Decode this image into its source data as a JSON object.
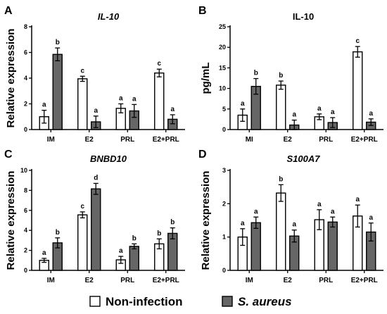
{
  "legend": [
    {
      "label": "Non-infection",
      "color": "#ffffff"
    },
    {
      "label": "S. aureus",
      "color": "#666666"
    }
  ],
  "chart_data": [
    {
      "panel": "A",
      "type": "bar",
      "title": "IL-10",
      "title_italic": true,
      "xlabel": "",
      "ylabel": "Relative expression",
      "ylim": [
        0,
        8
      ],
      "yticks": [
        0,
        2,
        4,
        6,
        8
      ],
      "categories": [
        "IM",
        "E2",
        "PRL",
        "E2+PRL"
      ],
      "series": [
        {
          "name": "Non-infection",
          "values": [
            1.0,
            3.95,
            1.65,
            4.4
          ],
          "errors": [
            0.5,
            0.2,
            0.35,
            0.3
          ],
          "letters": [
            "a",
            "c",
            "a",
            "c"
          ]
        },
        {
          "name": "S. aureus",
          "values": [
            5.85,
            0.6,
            1.45,
            0.8
          ],
          "errors": [
            0.5,
            0.45,
            0.5,
            0.35
          ],
          "letters": [
            "b",
            "a",
            "a",
            "a"
          ]
        }
      ]
    },
    {
      "panel": "B",
      "type": "bar",
      "title": "IL-10",
      "title_italic": false,
      "xlabel": "",
      "ylabel": "pg/mL",
      "ylim": [
        0,
        25
      ],
      "yticks": [
        0,
        5,
        10,
        15,
        20,
        25
      ],
      "categories": [
        "MI",
        "E2",
        "PRL",
        "E2+PRL"
      ],
      "series": [
        {
          "name": "Non-infection",
          "values": [
            3.5,
            10.8,
            3.1,
            18.9
          ],
          "errors": [
            1.5,
            1.0,
            0.7,
            1.3
          ],
          "letters": [
            "a",
            "b",
            "a",
            "c"
          ]
        },
        {
          "name": "S. aureus",
          "values": [
            10.5,
            1.1,
            1.7,
            1.8
          ],
          "errors": [
            1.9,
            1.2,
            1.2,
            0.8
          ],
          "letters": [
            "b",
            "a",
            "a",
            "a"
          ]
        }
      ]
    },
    {
      "panel": "C",
      "type": "bar",
      "title": "BNBD10",
      "title_italic": true,
      "xlabel": "",
      "ylabel": "Relative expression",
      "ylim": [
        0,
        10
      ],
      "yticks": [
        0,
        2,
        4,
        6,
        8,
        10
      ],
      "categories": [
        "IM",
        "E2",
        "PRL",
        "E2+PRL"
      ],
      "series": [
        {
          "name": "Non-infection",
          "values": [
            1.0,
            5.55,
            1.05,
            2.65
          ],
          "errors": [
            0.2,
            0.3,
            0.35,
            0.5
          ],
          "letters": [
            "a",
            "c",
            "a",
            "b"
          ]
        },
        {
          "name": "S. aureus",
          "values": [
            2.75,
            8.15,
            2.4,
            3.7
          ],
          "errors": [
            0.5,
            0.55,
            0.25,
            0.55
          ],
          "letters": [
            "b",
            "d",
            "b",
            "b"
          ]
        }
      ]
    },
    {
      "panel": "D",
      "type": "bar",
      "title": "S100A7",
      "title_italic": true,
      "xlabel": "",
      "ylabel": "Relative expression",
      "ylim": [
        0,
        3
      ],
      "yticks": [
        0,
        1,
        2,
        3
      ],
      "categories": [
        "IM",
        "E2",
        "PRL",
        "E2+PRL"
      ],
      "series": [
        {
          "name": "Non-infection",
          "values": [
            1.0,
            2.32,
            1.52,
            1.63
          ],
          "errors": [
            0.25,
            0.25,
            0.3,
            0.33
          ],
          "letters": [
            "a",
            "b",
            "a",
            "a"
          ]
        },
        {
          "name": "S. aureus",
          "values": [
            1.43,
            1.03,
            1.45,
            1.15
          ],
          "errors": [
            0.17,
            0.18,
            0.15,
            0.27
          ],
          "letters": [
            "a",
            "a",
            "a",
            "a"
          ]
        }
      ]
    }
  ]
}
